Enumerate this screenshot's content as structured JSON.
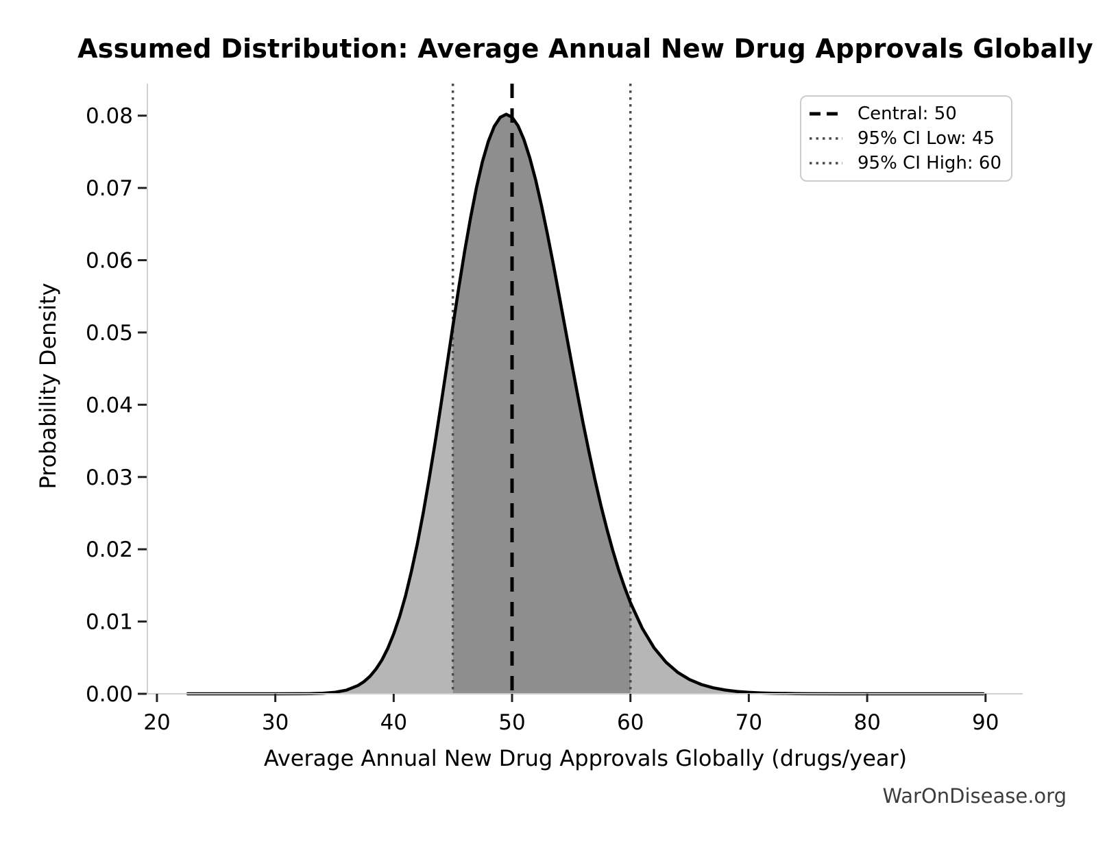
{
  "chart_data": {
    "type": "area",
    "title": "Assumed Distribution: Average Annual New Drug Approvals Globally",
    "xlabel": "Average Annual New Drug Approvals Globally (drugs/year)",
    "ylabel": "Probability Density",
    "watermark": "WarOnDisease.org",
    "xlim": [
      19.25,
      93.14
    ],
    "ylim": [
      0,
      0.08443
    ],
    "grid": false,
    "xticks": [
      {
        "v": 20,
        "label": "20"
      },
      {
        "v": 30,
        "label": "30"
      },
      {
        "v": 40,
        "label": "40"
      },
      {
        "v": 50,
        "label": "50"
      },
      {
        "v": 60,
        "label": "60"
      },
      {
        "v": 70,
        "label": "70"
      },
      {
        "v": 80,
        "label": "80"
      },
      {
        "v": 90,
        "label": "90"
      }
    ],
    "yticks": [
      {
        "v": 0.0,
        "label": "0.00"
      },
      {
        "v": 0.01,
        "label": "0.01"
      },
      {
        "v": 0.02,
        "label": "0.02"
      },
      {
        "v": 0.03,
        "label": "0.03"
      },
      {
        "v": 0.04,
        "label": "0.04"
      },
      {
        "v": 0.05,
        "label": "0.05"
      },
      {
        "v": 0.06,
        "label": "0.06"
      },
      {
        "v": 0.07,
        "label": "0.07"
      },
      {
        "v": 0.08,
        "label": "0.08"
      }
    ],
    "markers": {
      "central": 50,
      "ci_low": 45,
      "ci_high": 60
    },
    "shaded_region": [
      45,
      60
    ],
    "distribution": {
      "family": "lognormal",
      "median": 50,
      "sigma_log": 0.1,
      "peak_x": 49.5,
      "peak_density": 0.0802
    },
    "legend": {
      "position": "upper right",
      "items": [
        {
          "label": "Central: 50",
          "style": "dashed",
          "color": "#000000"
        },
        {
          "label": "95% CI Low: 45",
          "style": "dotted",
          "color": "#4a4a4a"
        },
        {
          "label": "95% CI High: 60",
          "style": "dotted",
          "color": "#4a4a4a"
        }
      ]
    },
    "colors": {
      "curve": "#000000",
      "fill_outer": "#b6b6b6",
      "fill_inner": "#8e8e8e",
      "central_line": "#000000",
      "ci_line": "#4a4a4a",
      "spine": "#d0d0d0",
      "tick": "#222222",
      "text": "#000000",
      "watermark": "#3d3d3d"
    },
    "curve_points": [
      [
        22.6,
        0
      ],
      [
        26,
        0
      ],
      [
        30,
        0
      ],
      [
        32,
        6e-06
      ],
      [
        33,
        2.2e-05
      ],
      [
        34,
        6.9e-05
      ],
      [
        35,
        0.000196
      ],
      [
        36,
        0.000502
      ],
      [
        37,
        0.00116
      ],
      [
        37.5,
        0.001698
      ],
      [
        38,
        0.002432
      ],
      [
        38.5,
        0.003403
      ],
      [
        39,
        0.00467
      ],
      [
        39.5,
        0.00628
      ],
      [
        40,
        0.00828
      ],
      [
        40.5,
        0.010698
      ],
      [
        41,
        0.013556
      ],
      [
        41.5,
        0.016943
      ],
      [
        42,
        0.020772
      ],
      [
        42.5,
        0.025061
      ],
      [
        43,
        0.029756
      ],
      [
        43.5,
        0.034774
      ],
      [
        44,
        0.04005
      ],
      [
        44.5,
        0.045461
      ],
      [
        45,
        0.050891
      ],
      [
        45.5,
        0.056204
      ],
      [
        46,
        0.061261
      ],
      [
        46.5,
        0.065932
      ],
      [
        47,
        0.070093
      ],
      [
        47.5,
        0.073635
      ],
      [
        48,
        0.076469
      ],
      [
        48.5,
        0.078528
      ],
      [
        49,
        0.079772
      ],
      [
        49.5,
        0.080188
      ],
      [
        50,
        0.079789
      ],
      [
        50.5,
        0.078608
      ],
      [
        51,
        0.076705
      ],
      [
        51.5,
        0.074153
      ],
      [
        52,
        0.07104
      ],
      [
        52.5,
        0.067462
      ],
      [
        53,
        0.06352
      ],
      [
        53.5,
        0.059313
      ],
      [
        54,
        0.054937
      ],
      [
        54.5,
        0.050494
      ],
      [
        55,
        0.046056
      ],
      [
        55.5,
        0.041698
      ],
      [
        56,
        0.037481
      ],
      [
        56.5,
        0.033456
      ],
      [
        57,
        0.029663
      ],
      [
        57.5,
        0.026125
      ],
      [
        58,
        0.022861
      ],
      [
        58.5,
        0.019881
      ],
      [
        59,
        0.017185
      ],
      [
        59.5,
        0.014767
      ],
      [
        60,
        0.012614
      ],
      [
        61,
        0.009059
      ],
      [
        62,
        0.006364
      ],
      [
        63,
        0.004381
      ],
      [
        64,
        0.002962
      ],
      [
        65,
        0.001966
      ],
      [
        66,
        0.001282
      ],
      [
        67,
        0.000823
      ],
      [
        68,
        0.000519
      ],
      [
        69,
        0.000323
      ],
      [
        70,
        0.000198
      ],
      [
        71,
        0.00012
      ],
      [
        72,
        7.2e-05
      ],
      [
        74,
        2.5e-05
      ],
      [
        75,
        1.4e-05
      ],
      [
        78,
        2e-06
      ],
      [
        80,
        1e-06
      ],
      [
        85,
        0
      ],
      [
        89.8,
        0
      ]
    ]
  }
}
